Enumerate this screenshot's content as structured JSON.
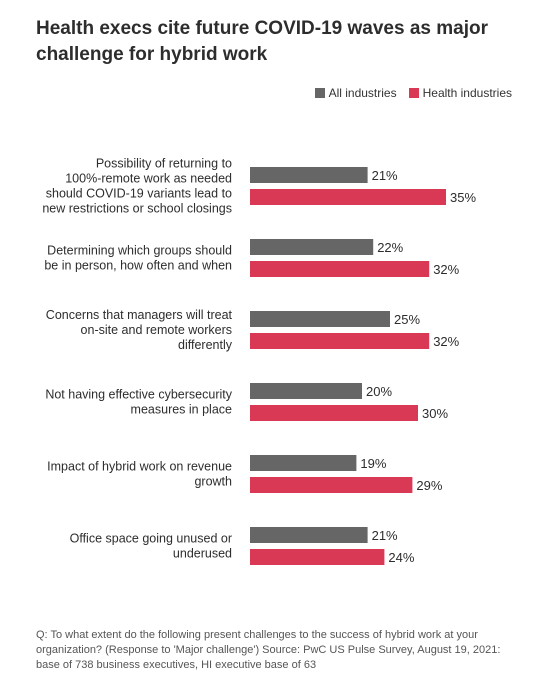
{
  "title": "Health execs cite future COVID-19 waves as major challenge for hybrid work",
  "legend": {
    "items": [
      {
        "label": "All industries",
        "color": "#666666"
      },
      {
        "label": "Health industries",
        "color": "#d93954"
      }
    ]
  },
  "chart_data": {
    "type": "bar",
    "orientation": "horizontal",
    "title": "Health execs cite future COVID-19 waves as major challenge for hybrid work",
    "categories": [
      "Possibility of returning to 100%-remote work as needed should COVID-19 variants lead to new restrictions or school closings",
      "Determining which groups should be in person, how often and when",
      "Concerns that managers will treat on-site and remote workers differently",
      "Not having effective cybersecurity measures in place",
      "Impact of hybrid work on revenue growth",
      "Office space going unused or underused"
    ],
    "category_lines": [
      [
        "Possibility of returning to",
        "100%-remote work as needed",
        "should COVID-19 variants lead to",
        "new restrictions or school closings"
      ],
      [
        "Determining which groups should",
        "be in person, how often and when"
      ],
      [
        "Concerns that managers will treat",
        "on-site and remote workers",
        "differently"
      ],
      [
        "Not having effective cybersecurity",
        "measures in place"
      ],
      [
        "Impact of hybrid work on revenue",
        "growth"
      ],
      [
        "Office space going unused or",
        "underused"
      ]
    ],
    "series": [
      {
        "name": "All industries",
        "color": "#666666",
        "values": [
          21,
          22,
          25,
          20,
          19,
          21
        ]
      },
      {
        "name": "Health industries",
        "color": "#d93954",
        "values": [
          35,
          32,
          32,
          30,
          29,
          24
        ]
      }
    ],
    "value_suffix": "%",
    "legend_position": "top-right",
    "grid": false
  },
  "footnote": "Q: To what extent do the following present challenges to the success of hybrid work at your organization? (Response to 'Major challenge') Source: PwC US Pulse Survey, August 19, 2021: base of 738 business executives, HI executive base of 63"
}
